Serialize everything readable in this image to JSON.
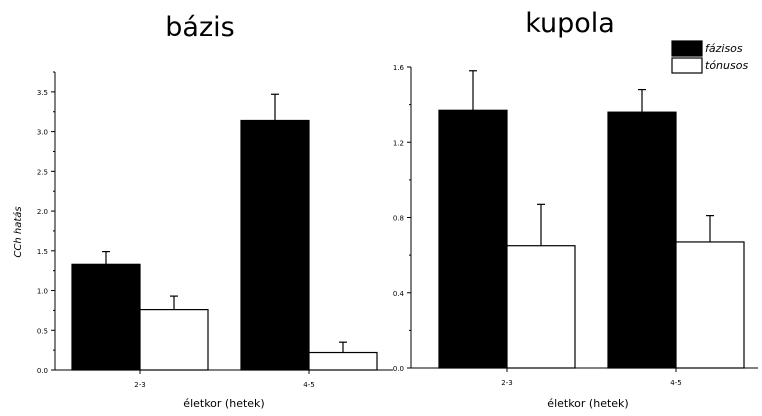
{
  "chart_data": [
    {
      "type": "bar",
      "title": "bázis",
      "xlabel": "életkor (hetek)",
      "ylabel": "CCh hatás",
      "categories": [
        "2-3",
        "4-5"
      ],
      "ylim": [
        0,
        3.75
      ],
      "yticks": [
        "0.0",
        "0.5",
        "1.0",
        "1.5",
        "2.0",
        "2.5",
        "3.0",
        "3.5"
      ],
      "series": [
        {
          "name": "fázisos",
          "color": "#000000",
          "values": [
            1.33,
            3.14
          ],
          "errors": [
            0.16,
            0.33
          ]
        },
        {
          "name": "tónusos",
          "color": "#ffffff",
          "values": [
            0.76,
            0.22
          ],
          "errors": [
            0.17,
            0.13
          ]
        }
      ]
    },
    {
      "type": "bar",
      "title": "kupola",
      "xlabel": "életkor (hetek)",
      "ylabel": "",
      "categories": [
        "2-3",
        "4-5"
      ],
      "ylim": [
        0,
        1.6
      ],
      "yticks": [
        "0.0",
        "0.4",
        "0.8",
        "1.2",
        "1.6"
      ],
      "legend": {
        "position": "top-right",
        "entries": [
          "fázisos",
          "tónusos"
        ]
      },
      "series": [
        {
          "name": "fázisos",
          "color": "#000000",
          "values": [
            1.37,
            1.36
          ],
          "errors": [
            0.21,
            0.12
          ]
        },
        {
          "name": "tónusos",
          "color": "#ffffff",
          "values": [
            0.65,
            0.67
          ],
          "errors": [
            0.22,
            0.14
          ]
        }
      ]
    }
  ]
}
